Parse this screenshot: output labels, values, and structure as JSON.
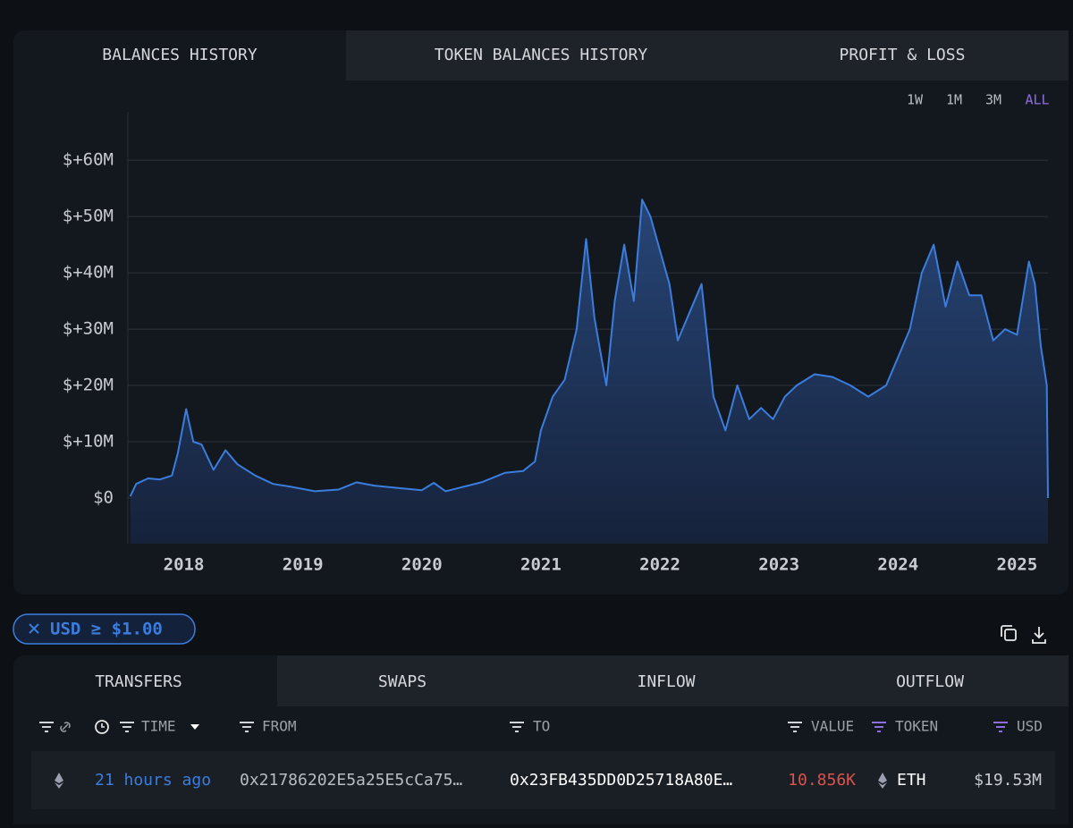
{
  "chart_tabs": [
    "BALANCES HISTORY",
    "TOKEN BALANCES HISTORY",
    "PROFIT & LOSS"
  ],
  "range_buttons": [
    "1W",
    "1M",
    "3M",
    "ALL"
  ],
  "chart_data": {
    "type": "area",
    "x": [
      2017.55,
      2017.6,
      2017.7,
      2017.8,
      2017.9,
      2017.95,
      2018.02,
      2018.08,
      2018.15,
      2018.25,
      2018.35,
      2018.45,
      2018.6,
      2018.75,
      2018.9,
      2019.0,
      2019.1,
      2019.3,
      2019.45,
      2019.6,
      2019.8,
      2020.0,
      2020.1,
      2020.2,
      2020.35,
      2020.5,
      2020.7,
      2020.85,
      2020.95,
      2021.0,
      2021.1,
      2021.2,
      2021.3,
      2021.38,
      2021.45,
      2021.55,
      2021.62,
      2021.7,
      2021.78,
      2021.85,
      2021.92,
      2022.0,
      2022.08,
      2022.15,
      2022.25,
      2022.35,
      2022.45,
      2022.55,
      2022.65,
      2022.75,
      2022.85,
      2022.95,
      2023.05,
      2023.15,
      2023.3,
      2023.45,
      2023.6,
      2023.75,
      2023.9,
      2024.0,
      2024.1,
      2024.2,
      2024.3,
      2024.4,
      2024.5,
      2024.6,
      2024.7,
      2024.8,
      2024.9,
      2025.0,
      2025.1,
      2025.15,
      2025.2,
      2025.25,
      2025.26
    ],
    "series": [
      {
        "color": "#3b7ddd",
        "values": [
          300000,
          2500000,
          3500000,
          3300000,
          4000000,
          8000000,
          15800000,
          10000000,
          9500000,
          5000000,
          8500000,
          6000000,
          4000000,
          2500000,
          2000000,
          1600000,
          1200000,
          1500000,
          2800000,
          2200000,
          1800000,
          1400000,
          2700000,
          1200000,
          2000000,
          2800000,
          4500000,
          4800000,
          6500000,
          12000000,
          18000000,
          21000000,
          30000000,
          46000000,
          32000000,
          20000000,
          35000000,
          45000000,
          35000000,
          53000000,
          50000000,
          44000000,
          38000000,
          28000000,
          33000000,
          38000000,
          18000000,
          12000000,
          20000000,
          14000000,
          16000000,
          14000000,
          18000000,
          20000000,
          22000000,
          21500000,
          20000000,
          18000000,
          20000000,
          25000000,
          30000000,
          40000000,
          45000000,
          34000000,
          42000000,
          36000000,
          36000000,
          28000000,
          30000000,
          29000000,
          42000000,
          38000000,
          27000000,
          20000000,
          0
        ]
      }
    ],
    "xlim": [
      2017.53,
      2025.26
    ],
    "xticks": [
      2018,
      2019,
      2020,
      2021,
      2022,
      2023,
      2024,
      2025
    ],
    "ylim": [
      -8100000,
      68600000
    ],
    "yticks": [
      {
        "value": 0,
        "label": "$0"
      },
      {
        "value": 10000000,
        "label": "$+10M"
      },
      {
        "value": 20000000,
        "label": "$+20M"
      },
      {
        "value": 30000000,
        "label": "$+30M"
      },
      {
        "value": 40000000,
        "label": "$+40M"
      },
      {
        "value": 50000000,
        "label": "$+50M"
      },
      {
        "value": 60000000,
        "label": "$+60M"
      }
    ],
    "grid": true
  },
  "filter_chip": "USD ≥ $1.00",
  "table_tabs": [
    "TRANSFERS",
    "SWAPS",
    "INFLOW",
    "OUTFLOW"
  ],
  "table": {
    "columns": [
      "TIME",
      "FROM",
      "TO",
      "VALUE",
      "TOKEN",
      "USD"
    ],
    "rows": [
      [
        "21 hours ago",
        "0x21786202E5a25E5cCa75…",
        "0x23FB435DD0D25718A80E…",
        "10.856K",
        "ETH",
        "$19.53M"
      ]
    ]
  }
}
